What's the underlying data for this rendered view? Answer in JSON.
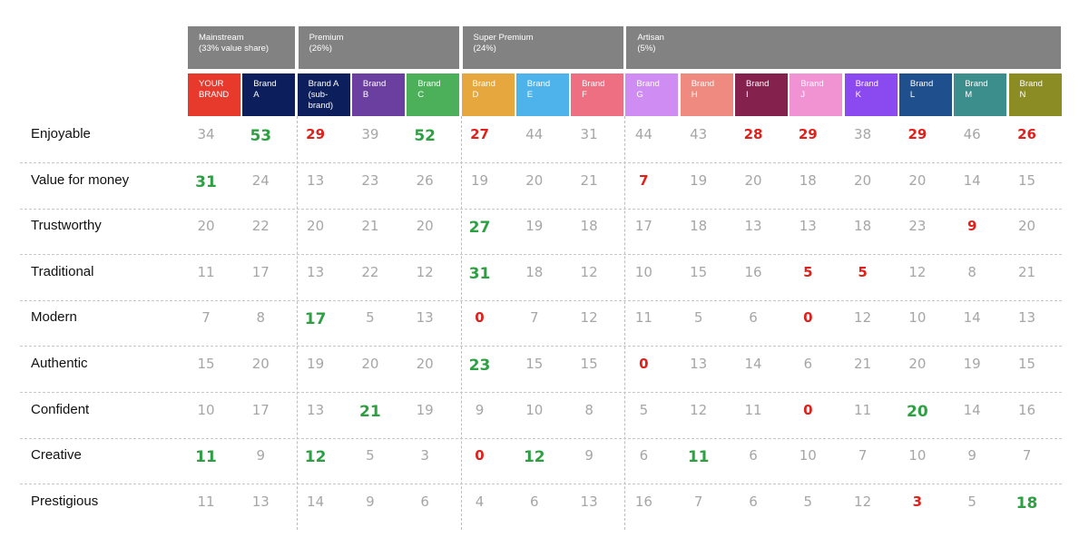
{
  "chart_data": {
    "type": "table",
    "segments": [
      {
        "name": "Mainstream",
        "share": "(33% value share)"
      },
      {
        "name": "Premium",
        "share": "(26%)"
      },
      {
        "name": "Super Premium",
        "share": "(24%)"
      },
      {
        "name": "Artisan",
        "share": "(5%)"
      }
    ],
    "brands": [
      {
        "label": "YOUR\nBRAND",
        "color": "#e8392d",
        "segment": 0
      },
      {
        "label": "Brand\nA",
        "color": "#0c1f5c",
        "segment": 0
      },
      {
        "label": "Brand A\n(sub-\nbrand)",
        "color": "#0c1f5c",
        "segment": 1
      },
      {
        "label": "Brand\nB",
        "color": "#6a3fa0",
        "segment": 1
      },
      {
        "label": "Brand\nC",
        "color": "#4caf5a",
        "segment": 1
      },
      {
        "label": "Brand\nD",
        "color": "#e6a83e",
        "segment": 2
      },
      {
        "label": "Brand\nE",
        "color": "#4db3ea",
        "segment": 2
      },
      {
        "label": "Brand\nF",
        "color": "#ef6f82",
        "segment": 2
      },
      {
        "label": "Brand\nG",
        "color": "#cf8cf2",
        "segment": 3
      },
      {
        "label": "Brand\nH",
        "color": "#ee8a7f",
        "segment": 3
      },
      {
        "label": "Brand\nI",
        "color": "#84214d",
        "segment": 3
      },
      {
        "label": "Brand\nJ",
        "color": "#f193d2",
        "segment": 3
      },
      {
        "label": "Brand\nK",
        "color": "#8b4af0",
        "segment": 3
      },
      {
        "label": "Brand\nL",
        "color": "#1f4f8c",
        "segment": 3
      },
      {
        "label": "Brand\nM",
        "color": "#3b8e8c",
        "segment": 3
      },
      {
        "label": "Brand\nN",
        "color": "#8c8c25",
        "segment": 3
      }
    ],
    "attributes": [
      "Enjoyable",
      "Value for money",
      "Trustworthy",
      "Traditional",
      "Modern",
      "Authentic",
      "Confident",
      "Creative",
      "Prestigious"
    ],
    "values": [
      [
        34,
        53,
        29,
        39,
        52,
        27,
        44,
        31,
        44,
        43,
        28,
        29,
        38,
        29,
        46,
        26
      ],
      [
        31,
        24,
        13,
        23,
        26,
        19,
        20,
        21,
        7,
        19,
        20,
        18,
        20,
        20,
        14,
        15
      ],
      [
        20,
        22,
        20,
        21,
        20,
        27,
        19,
        18,
        17,
        18,
        13,
        13,
        18,
        23,
        9,
        20
      ],
      [
        11,
        17,
        13,
        22,
        12,
        31,
        18,
        12,
        10,
        15,
        16,
        5,
        5,
        12,
        8,
        21
      ],
      [
        7,
        8,
        17,
        5,
        13,
        0,
        7,
        12,
        11,
        5,
        6,
        0,
        12,
        10,
        14,
        13
      ],
      [
        15,
        20,
        19,
        20,
        20,
        23,
        15,
        15,
        0,
        13,
        14,
        6,
        21,
        20,
        19,
        15
      ],
      [
        10,
        17,
        13,
        21,
        19,
        9,
        10,
        8,
        5,
        12,
        11,
        0,
        11,
        20,
        14,
        16
      ],
      [
        11,
        9,
        12,
        5,
        3,
        0,
        12,
        9,
        6,
        11,
        6,
        10,
        7,
        10,
        9,
        7
      ],
      [
        11,
        13,
        14,
        9,
        6,
        4,
        6,
        13,
        16,
        7,
        6,
        5,
        12,
        3,
        5,
        18
      ]
    ],
    "highlights": [
      [
        "n",
        "high",
        "low",
        "n",
        "high",
        "low",
        "n",
        "n",
        "n",
        "n",
        "low",
        "low",
        "n",
        "low",
        "n",
        "low"
      ],
      [
        "high",
        "n",
        "n",
        "n",
        "n",
        "n",
        "n",
        "n",
        "low",
        "n",
        "n",
        "n",
        "n",
        "n",
        "n",
        "n"
      ],
      [
        "n",
        "n",
        "n",
        "n",
        "n",
        "high",
        "n",
        "n",
        "n",
        "n",
        "n",
        "n",
        "n",
        "n",
        "low",
        "n"
      ],
      [
        "n",
        "n",
        "n",
        "n",
        "n",
        "high",
        "n",
        "n",
        "n",
        "n",
        "n",
        "low",
        "low",
        "n",
        "n",
        "n"
      ],
      [
        "n",
        "n",
        "high",
        "n",
        "n",
        "low",
        "n",
        "n",
        "n",
        "n",
        "n",
        "low",
        "n",
        "n",
        "n",
        "n"
      ],
      [
        "n",
        "n",
        "n",
        "n",
        "n",
        "high",
        "n",
        "n",
        "low",
        "n",
        "n",
        "n",
        "n",
        "n",
        "n",
        "n"
      ],
      [
        "n",
        "n",
        "n",
        "high",
        "n",
        "n",
        "n",
        "n",
        "n",
        "n",
        "n",
        "low",
        "n",
        "high",
        "n",
        "n"
      ],
      [
        "high",
        "n",
        "high",
        "n",
        "n",
        "low",
        "high",
        "n",
        "n",
        "high",
        "n",
        "n",
        "n",
        "n",
        "n",
        "n"
      ],
      [
        "n",
        "n",
        "n",
        "n",
        "n",
        "n",
        "n",
        "n",
        "n",
        "n",
        "n",
        "n",
        "n",
        "low",
        "n",
        "high"
      ]
    ],
    "colors": {
      "high": "#2ea043",
      "low": "#e0201b",
      "neutral": "#a6a6a6",
      "segment_header": "#828282"
    }
  }
}
